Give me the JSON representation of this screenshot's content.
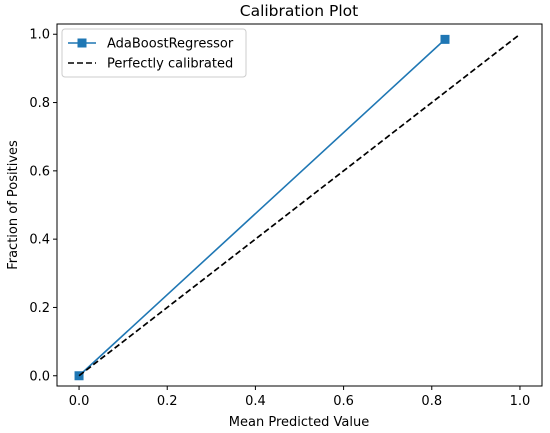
{
  "chart_data": {
    "type": "line",
    "title": "Calibration Plot",
    "xlabel": "Mean Predicted Value",
    "ylabel": "Fraction of Positives",
    "xlim": [
      -0.05,
      1.05
    ],
    "ylim": [
      -0.03,
      1.03
    ],
    "xticks": [
      0.0,
      0.2,
      0.4,
      0.6,
      0.8,
      1.0
    ],
    "yticks": [
      0.0,
      0.2,
      0.4,
      0.6,
      0.8,
      1.0
    ],
    "xtick_labels": [
      "0.0",
      "0.2",
      "0.4",
      "0.6",
      "0.8",
      "1.0"
    ],
    "ytick_labels": [
      "0.0",
      "0.2",
      "0.4",
      "0.6",
      "0.8",
      "1.0"
    ],
    "grid": false,
    "legend_position": "top-left",
    "series": [
      {
        "name": "AdaBoostRegressor",
        "style": "solid",
        "marker": "square",
        "color": "#1f77b4",
        "x": [
          0.0,
          0.83
        ],
        "y": [
          0.0,
          0.985
        ]
      },
      {
        "name": "Perfectly calibrated",
        "style": "dashed",
        "marker": "none",
        "color": "#000000",
        "x": [
          0.0,
          1.0
        ],
        "y": [
          0.0,
          1.0
        ]
      }
    ]
  }
}
